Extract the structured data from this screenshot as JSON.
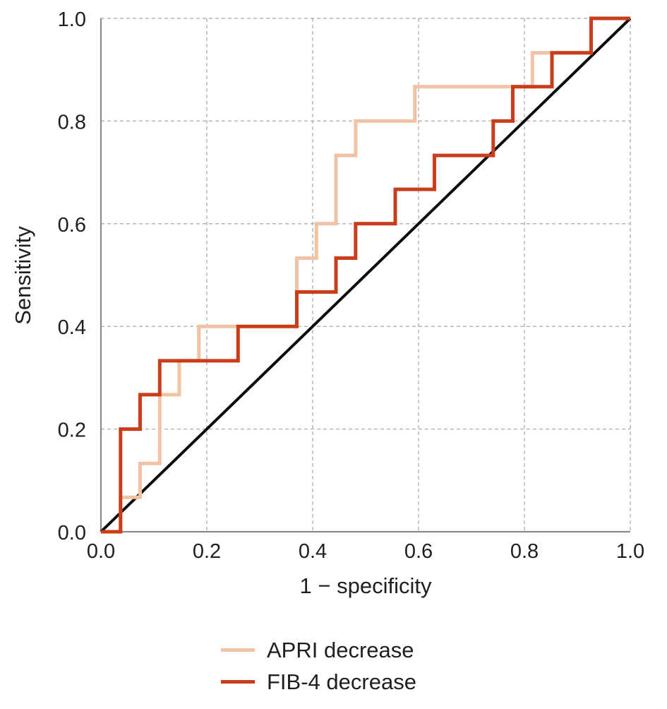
{
  "figure": {
    "background": "#ffffff"
  },
  "chart_data": {
    "type": "line",
    "variant": "roc-step-curve",
    "title": "",
    "xlabel": "1 − specificity",
    "ylabel": "Sensitivity",
    "xlim": [
      0.0,
      1.0
    ],
    "ylim": [
      0.0,
      1.0
    ],
    "xticks": [
      0.0,
      0.2,
      0.4,
      0.6,
      0.8,
      1.0
    ],
    "yticks": [
      0.0,
      0.2,
      0.4,
      0.6,
      0.8,
      1.0
    ],
    "tick_decimals": 1,
    "grid": {
      "show": true,
      "style": "dashed",
      "color": "#b5b5b5"
    },
    "axis_color": "#8a8a8a",
    "text_color": "#221e1d",
    "legend_position": "bottom-center",
    "reference_line": {
      "name": "chance-diagonal",
      "from": [
        0,
        0
      ],
      "to": [
        1,
        1
      ],
      "color": "#0c0c0c"
    },
    "series": [
      {
        "name": "APRI decrease",
        "color": "#f1c2a4",
        "points": [
          [
            0.0,
            0.0
          ],
          [
            0.037,
            0.0
          ],
          [
            0.037,
            0.067
          ],
          [
            0.074,
            0.067
          ],
          [
            0.074,
            0.133
          ],
          [
            0.111,
            0.133
          ],
          [
            0.111,
            0.267
          ],
          [
            0.148,
            0.267
          ],
          [
            0.148,
            0.333
          ],
          [
            0.185,
            0.333
          ],
          [
            0.185,
            0.4
          ],
          [
            0.37,
            0.4
          ],
          [
            0.37,
            0.533
          ],
          [
            0.407,
            0.533
          ],
          [
            0.407,
            0.6
          ],
          [
            0.444,
            0.6
          ],
          [
            0.444,
            0.733
          ],
          [
            0.481,
            0.733
          ],
          [
            0.481,
            0.8
          ],
          [
            0.593,
            0.8
          ],
          [
            0.593,
            0.867
          ],
          [
            0.815,
            0.867
          ],
          [
            0.815,
            0.933
          ],
          [
            0.926,
            0.933
          ],
          [
            0.926,
            1.0
          ],
          [
            1.0,
            1.0
          ]
        ]
      },
      {
        "name": "FIB-4 decrease",
        "color": "#ca3d1b",
        "points": [
          [
            0.0,
            0.0
          ],
          [
            0.037,
            0.0
          ],
          [
            0.037,
            0.2
          ],
          [
            0.074,
            0.2
          ],
          [
            0.074,
            0.267
          ],
          [
            0.111,
            0.267
          ],
          [
            0.111,
            0.333
          ],
          [
            0.259,
            0.333
          ],
          [
            0.259,
            0.4
          ],
          [
            0.37,
            0.4
          ],
          [
            0.37,
            0.467
          ],
          [
            0.444,
            0.467
          ],
          [
            0.444,
            0.533
          ],
          [
            0.481,
            0.533
          ],
          [
            0.481,
            0.6
          ],
          [
            0.556,
            0.6
          ],
          [
            0.556,
            0.667
          ],
          [
            0.63,
            0.667
          ],
          [
            0.63,
            0.733
          ],
          [
            0.741,
            0.733
          ],
          [
            0.741,
            0.8
          ],
          [
            0.778,
            0.8
          ],
          [
            0.778,
            0.867
          ],
          [
            0.852,
            0.867
          ],
          [
            0.852,
            0.933
          ],
          [
            0.926,
            0.933
          ],
          [
            0.926,
            1.0
          ],
          [
            1.0,
            1.0
          ]
        ]
      }
    ]
  }
}
